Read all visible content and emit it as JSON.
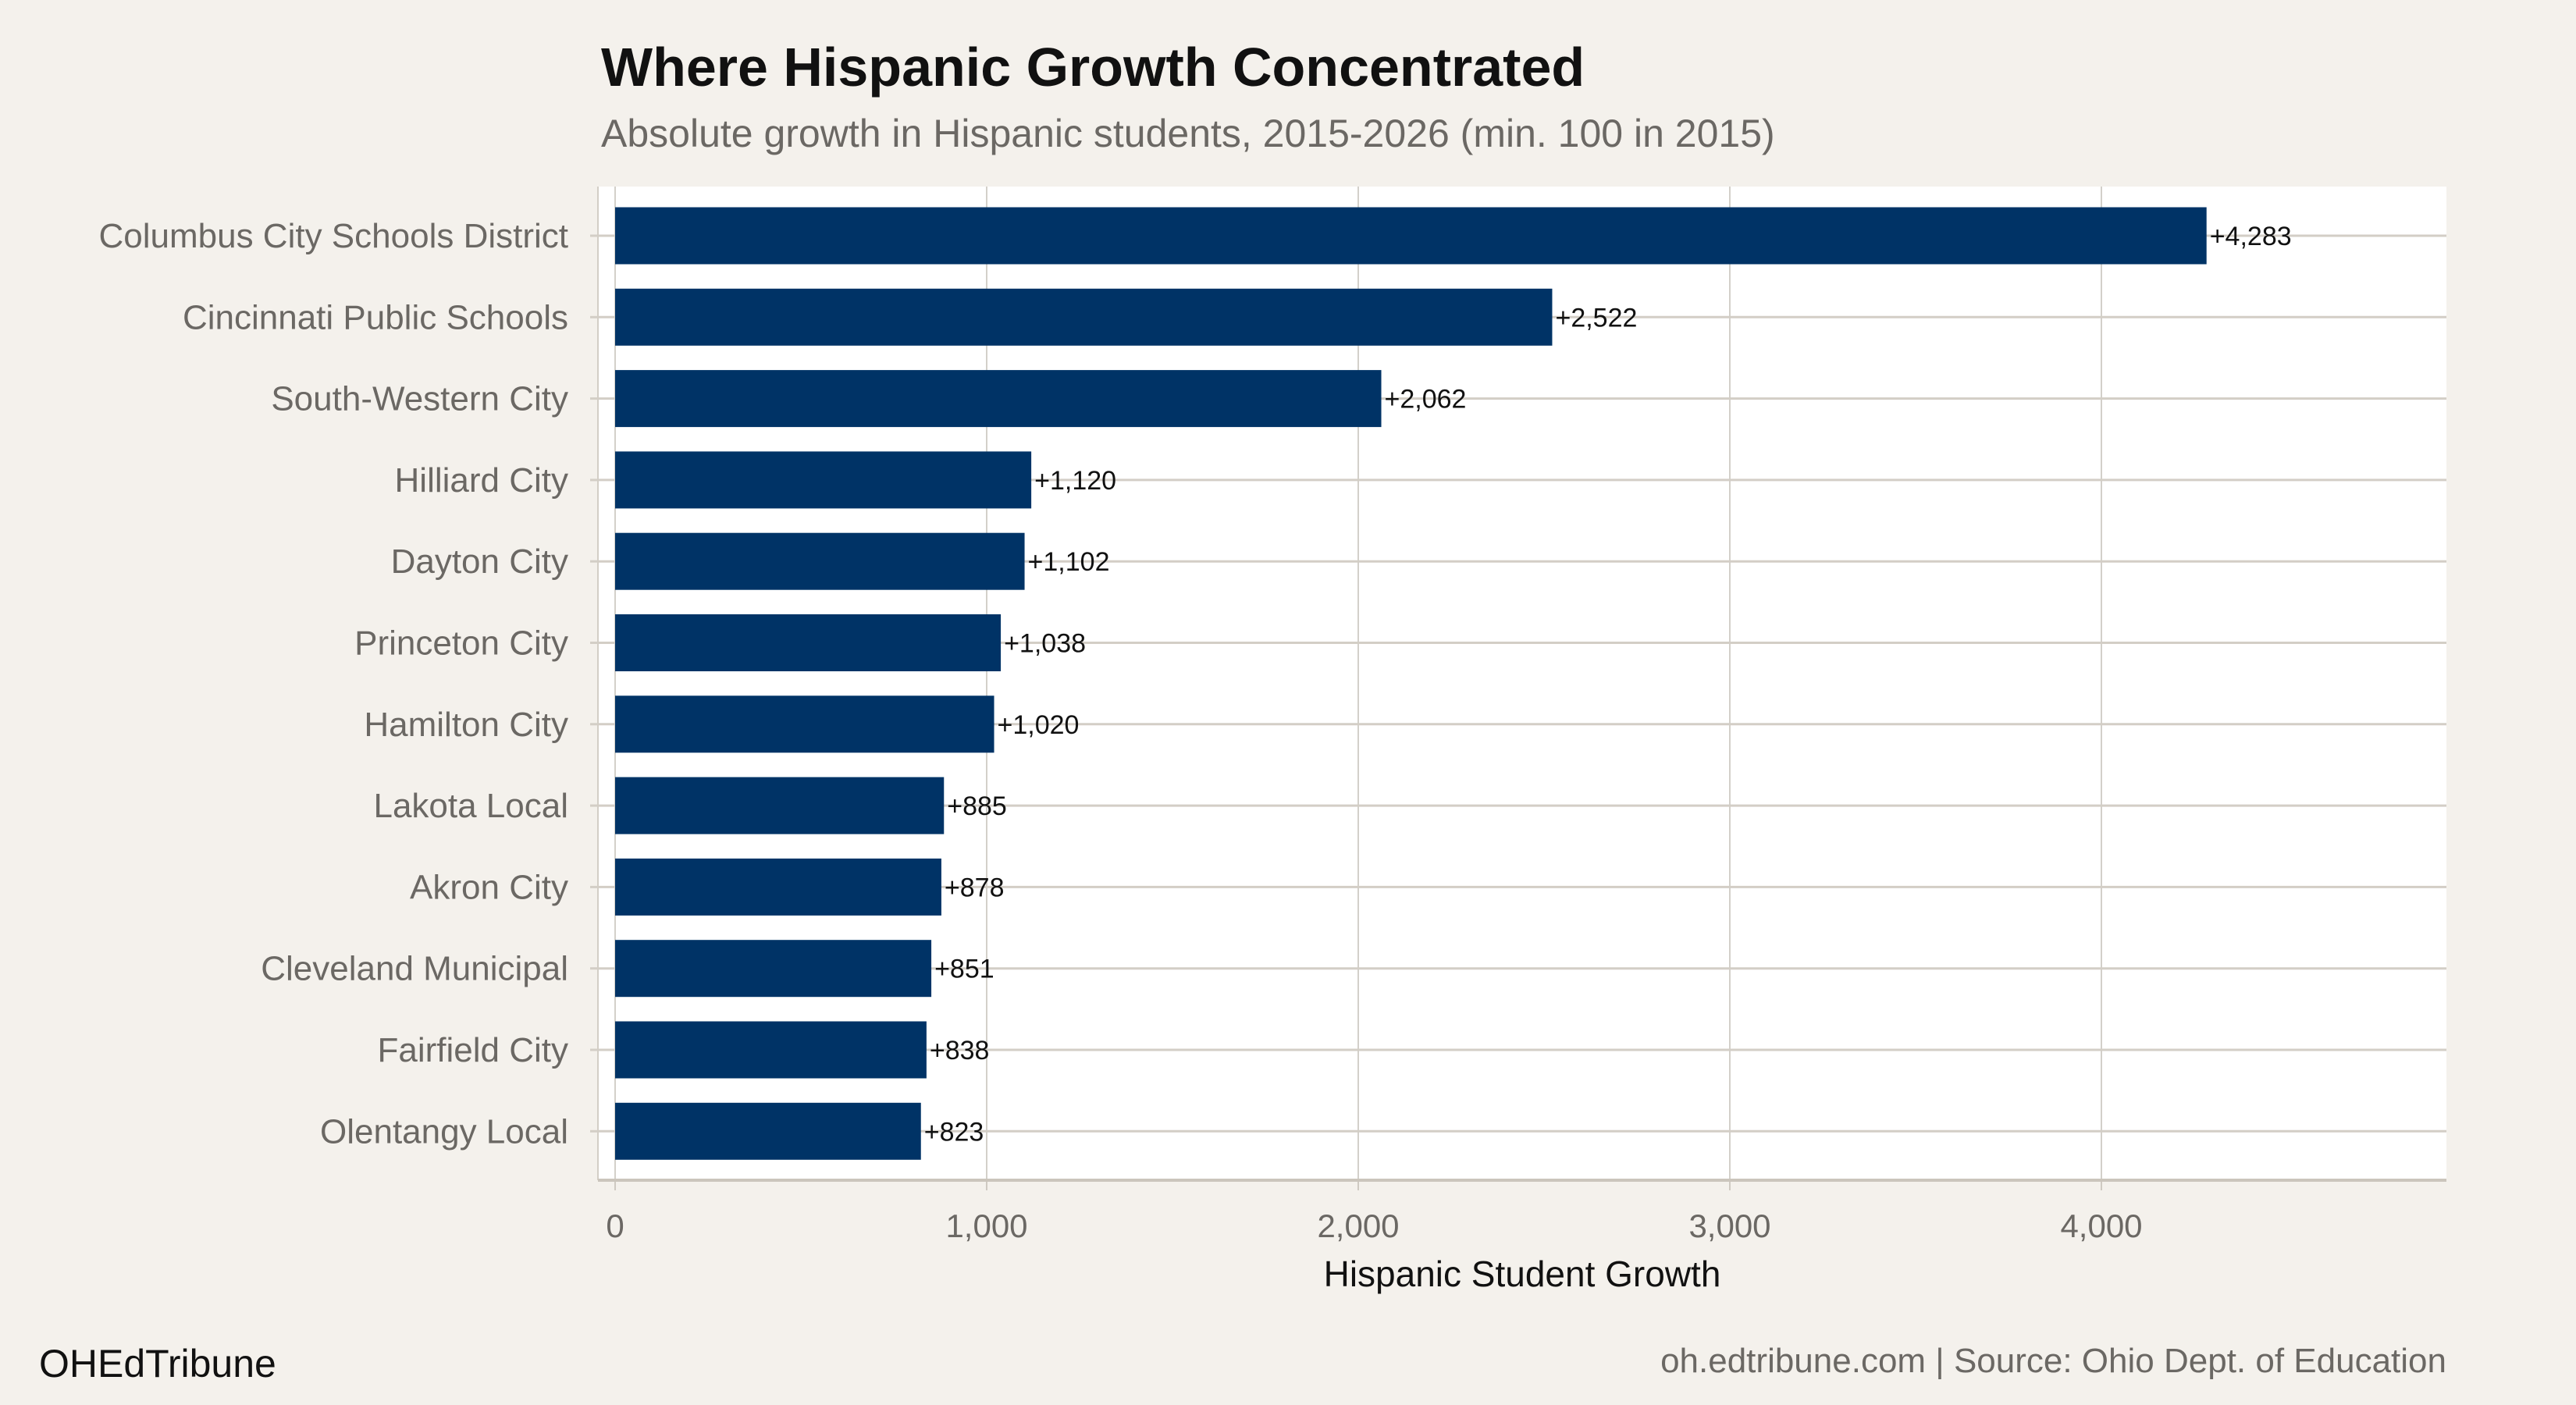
{
  "chart_data": {
    "type": "bar",
    "orientation": "horizontal",
    "title": "Where Hispanic Growth Concentrated",
    "subtitle": "Absolute growth in Hispanic students, 2015-2026 (min. 100 in 2015)",
    "xlabel": "Hispanic Student Growth",
    "ylabel": "",
    "categories": [
      "Columbus City Schools District",
      "Cincinnati Public Schools",
      "South-Western City",
      "Hilliard City",
      "Dayton City",
      "Princeton City",
      "Hamilton City",
      "Lakota Local",
      "Akron City",
      "Cleveland Municipal",
      "Fairfield City",
      "Olentangy Local"
    ],
    "values": [
      4283,
      2522,
      2062,
      1120,
      1102,
      1038,
      1020,
      885,
      878,
      851,
      838,
      823
    ],
    "data_labels": [
      "+4,283",
      "+2,522",
      "+2,062",
      "+1,120",
      "+1,102",
      "+1,038",
      "+1,020",
      "+885",
      "+878",
      "+851",
      "+838",
      "+823"
    ],
    "xlim": [
      0,
      4960
    ],
    "xticks": [
      0,
      1000,
      2000,
      3000,
      4000
    ],
    "xtick_labels": [
      "0",
      "1,000",
      "2,000",
      "3,000",
      "4,000"
    ],
    "grid": true,
    "bar_color": "#003366",
    "background": "#f4f1ec"
  },
  "footer": {
    "brand": "OHEdTribune",
    "source": "oh.edtribune.com | Source: Ohio Dept. of Education"
  }
}
